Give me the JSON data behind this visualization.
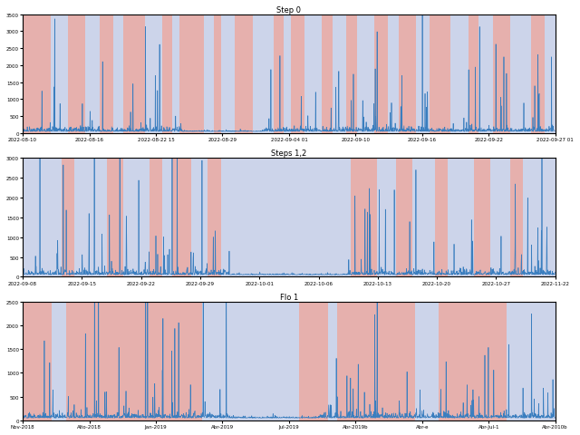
{
  "subplot_titles": [
    "Step 0",
    "Steps 1,2",
    "Flo 1"
  ],
  "subplot1": {
    "ylim": [
      0,
      3500
    ],
    "yticks": [
      0,
      500,
      1000,
      1500,
      2000,
      2500,
      3000,
      3500
    ],
    "xtick_labels": [
      "2022-08-10",
      "2022-08-16",
      "2022-08-22 15",
      "2022-08-29",
      "2022-09-04 01",
      "2022-09-10",
      "2022-09-16",
      "2022-09-22",
      "2022-09-27 01"
    ],
    "bg_segments": [
      [
        "r",
        8
      ],
      [
        "b",
        5
      ],
      [
        "r",
        5
      ],
      [
        "b",
        4
      ],
      [
        "r",
        4
      ],
      [
        "b",
        3
      ],
      [
        "r",
        6
      ],
      [
        "b",
        5
      ],
      [
        "r",
        3
      ],
      [
        "b",
        2
      ],
      [
        "r",
        7
      ],
      [
        "b",
        3
      ],
      [
        "r",
        2
      ],
      [
        "b",
        4
      ],
      [
        "r",
        5
      ],
      [
        "b",
        6
      ],
      [
        "r",
        3
      ],
      [
        "b",
        2
      ],
      [
        "r",
        4
      ],
      [
        "b",
        5
      ],
      [
        "r",
        3
      ],
      [
        "b",
        4
      ],
      [
        "r",
        3
      ],
      [
        "b",
        5
      ],
      [
        "r",
        4
      ],
      [
        "b",
        3
      ],
      [
        "r",
        5
      ],
      [
        "b",
        4
      ],
      [
        "r",
        6
      ],
      [
        "b",
        5
      ],
      [
        "r",
        3
      ],
      [
        "b",
        4
      ],
      [
        "r",
        5
      ],
      [
        "b",
        6
      ],
      [
        "r",
        4
      ],
      [
        "b",
        3
      ]
    ]
  },
  "subplot2": {
    "ylim": [
      0,
      3000
    ],
    "yticks": [
      0,
      500,
      1000,
      1500,
      2000,
      2500,
      3000
    ],
    "xtick_labels": [
      "2022-09-08",
      "2022-09-15",
      "2022-09-22",
      "2022-09-29",
      "2022-10-01",
      "2022-10-06",
      "2022-10-13",
      "2022-10-20",
      "2022-10-27",
      "2022-11-22"
    ],
    "bg_segments": [
      [
        "b",
        12
      ],
      [
        "r",
        4
      ],
      [
        "b",
        10
      ],
      [
        "r",
        5
      ],
      [
        "b",
        8
      ],
      [
        "r",
        4
      ],
      [
        "b",
        3
      ],
      [
        "r",
        6
      ],
      [
        "b",
        5
      ],
      [
        "r",
        4
      ],
      [
        "b",
        40
      ],
      [
        "r",
        8
      ],
      [
        "b",
        6
      ],
      [
        "r",
        5
      ],
      [
        "b",
        7
      ],
      [
        "r",
        4
      ],
      [
        "b",
        8
      ],
      [
        "r",
        5
      ],
      [
        "b",
        6
      ],
      [
        "r",
        4
      ],
      [
        "b",
        10
      ]
    ]
  },
  "subplot3": {
    "ylim": [
      0,
      2500
    ],
    "yticks": [
      0,
      500,
      1000,
      1500,
      2000,
      2500
    ],
    "xtick_labels": [
      "Nov-2018",
      "Alto-2018",
      "Jan-2019",
      "Abr-2019",
      "Jul-2019",
      "Abr-2019b",
      "Abr-e",
      "Abr-Jul-1",
      "Abr-2010b"
    ],
    "bg_segments": [
      [
        "r",
        6
      ],
      [
        "b",
        3
      ],
      [
        "r",
        28
      ],
      [
        "b",
        20
      ],
      [
        "r",
        6
      ],
      [
        "b",
        2
      ],
      [
        "r",
        16
      ],
      [
        "b",
        5
      ],
      [
        "r",
        14
      ],
      [
        "b",
        10
      ]
    ]
  },
  "line_color": "#3a7ebf",
  "red_color": "#c9504a",
  "blue_color": "#7b8ec8",
  "red_alpha": 0.45,
  "blue_alpha": 0.38,
  "line_width": 0.5,
  "seed1": 42,
  "seed2": 123,
  "seed3": 99
}
